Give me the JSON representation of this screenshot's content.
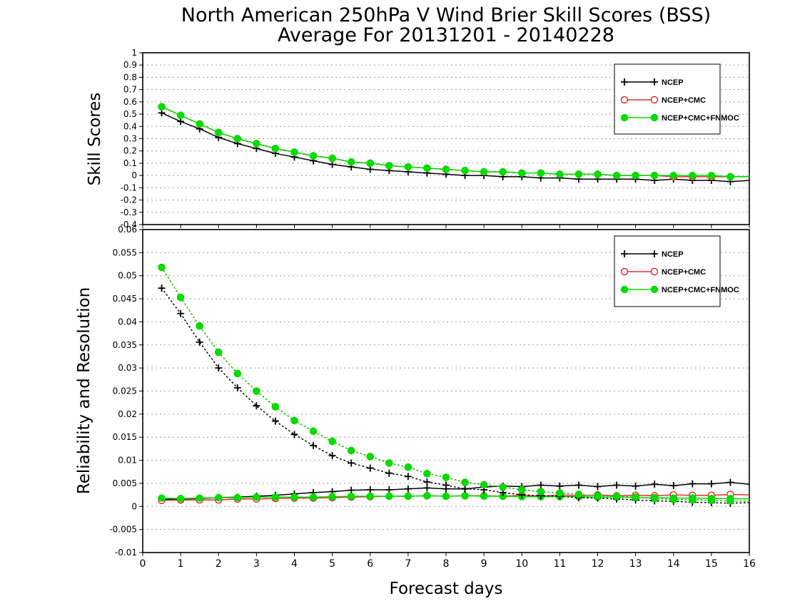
{
  "title": {
    "line1": "North American 250hPa V Wind Brier Skill Scores (BSS)",
    "line2": "Average For 20131201 - 20140228"
  },
  "xlabel": "Forecast days",
  "colors": {
    "ncep": "#000000",
    "ncep_cmc": "#e03030",
    "ncep_cmc_fnmoc": "#00dd00"
  },
  "chart_data": [
    {
      "type": "line",
      "panel": "top",
      "ylabel": "Skill Scores",
      "xlim": [
        0,
        16
      ],
      "ylim": [
        -0.4,
        1
      ],
      "xticks": [
        0,
        1,
        2,
        3,
        4,
        5,
        6,
        7,
        8,
        9,
        10,
        11,
        12,
        13,
        14,
        15,
        16
      ],
      "yticks": [
        "-0.4",
        "-0.3",
        "-0.2",
        "-0.1",
        "0",
        "0.1",
        "0.2",
        "0.3",
        "0.4",
        "0.5",
        "0.6",
        "0.7",
        "0.8",
        "0.9",
        "1"
      ],
      "grid": true,
      "legend_position": "top-right",
      "x": [
        0.5,
        1,
        1.5,
        2,
        2.5,
        3,
        3.5,
        4,
        4.5,
        5,
        5.5,
        6,
        6.5,
        7,
        7.5,
        8,
        8.5,
        9,
        9.5,
        10,
        10.5,
        11,
        11.5,
        12,
        12.5,
        13,
        13.5,
        14,
        14.5,
        15,
        15.5,
        16
      ],
      "series": [
        {
          "name": "NCEP",
          "style": "solid",
          "marker": "plus",
          "color_key": "ncep",
          "values": [
            0.51,
            0.44,
            0.38,
            0.31,
            0.26,
            0.22,
            0.18,
            0.15,
            0.12,
            0.09,
            0.07,
            0.05,
            0.04,
            0.03,
            0.02,
            0.01,
            0.0,
            0.0,
            -0.01,
            -0.01,
            -0.02,
            -0.02,
            -0.03,
            -0.03,
            -0.03,
            -0.03,
            -0.04,
            -0.03,
            -0.04,
            -0.04,
            -0.05,
            -0.04
          ]
        },
        {
          "name": "NCEP+CMC",
          "style": "solid",
          "marker": "open-circle",
          "color_key": "ncep_cmc",
          "values": [
            0.56,
            0.49,
            0.42,
            0.35,
            0.3,
            0.26,
            0.22,
            0.19,
            0.16,
            0.14,
            0.11,
            0.1,
            0.08,
            0.07,
            0.06,
            0.05,
            0.04,
            0.03,
            0.03,
            0.02,
            0.02,
            0.01,
            0.01,
            0.01,
            0.0,
            0.0,
            0.0,
            -0.01,
            -0.01,
            -0.01,
            -0.01,
            -0.01
          ]
        },
        {
          "name": "NCEP+CMC+FNMOC",
          "style": "solid",
          "marker": "filled-circle",
          "color_key": "ncep_cmc_fnmoc",
          "values": [
            0.56,
            0.49,
            0.42,
            0.35,
            0.3,
            0.26,
            0.22,
            0.19,
            0.16,
            0.14,
            0.11,
            0.1,
            0.08,
            0.07,
            0.06,
            0.05,
            0.04,
            0.03,
            0.03,
            0.02,
            0.02,
            0.01,
            0.01,
            0.01,
            0.0,
            0.0,
            0.0,
            0.0,
            0.0,
            0.0,
            -0.01,
            -0.01
          ]
        }
      ]
    },
    {
      "type": "line",
      "panel": "bottom",
      "ylabel": "Reliability and Resolution",
      "xlim": [
        0,
        16
      ],
      "ylim": [
        -0.01,
        0.06
      ],
      "xticks": [
        0,
        1,
        2,
        3,
        4,
        5,
        6,
        7,
        8,
        9,
        10,
        11,
        12,
        13,
        14,
        15,
        16
      ],
      "yticks": [
        "-0.01",
        "-0.005",
        "0",
        "0.005",
        "0.01",
        "0.015",
        "0.02",
        "0.025",
        "0.03",
        "0.035",
        "0.04",
        "0.045",
        "0.05",
        "0.055",
        "0.06"
      ],
      "grid": true,
      "legend_position": "top-right",
      "x": [
        0.5,
        1,
        1.5,
        2,
        2.5,
        3,
        3.5,
        4,
        4.5,
        5,
        5.5,
        6,
        6.5,
        7,
        7.5,
        8,
        8.5,
        9,
        9.5,
        10,
        10.5,
        11,
        11.5,
        12,
        12.5,
        13,
        13.5,
        14,
        14.5,
        15,
        15.5,
        16
      ],
      "series": [
        {
          "name": "NCEP",
          "style": "solid",
          "marker": "plus",
          "color_key": "ncep",
          "legend": true,
          "values": [
            0.0015,
            0.0016,
            0.0017,
            0.0019,
            0.002,
            0.0022,
            0.0024,
            0.0027,
            0.003,
            0.0032,
            0.0035,
            0.0036,
            0.0036,
            0.0038,
            0.004,
            0.0038,
            0.0038,
            0.0042,
            0.0044,
            0.0043,
            0.0046,
            0.0044,
            0.0046,
            0.0043,
            0.0046,
            0.0044,
            0.0048,
            0.0045,
            0.0049,
            0.0049,
            0.0052,
            0.0048
          ]
        },
        {
          "name": "NCEP+CMC",
          "style": "solid",
          "marker": "open-circle",
          "color_key": "ncep_cmc",
          "legend": true,
          "values": [
            0.0013,
            0.0014,
            0.0014,
            0.0014,
            0.0016,
            0.0016,
            0.0017,
            0.0018,
            0.0018,
            0.0019,
            0.002,
            0.0021,
            0.0022,
            0.0022,
            0.0023,
            0.0022,
            0.0023,
            0.0023,
            0.0022,
            0.0024,
            0.0022,
            0.0025,
            0.0023,
            0.0025,
            0.0023,
            0.0024,
            0.0023,
            0.0025,
            0.0024,
            0.0024,
            0.0026,
            0.0025
          ]
        },
        {
          "name": "NCEP+CMC+FNMOC",
          "style": "solid",
          "marker": "filled-circle",
          "color_key": "ncep_cmc_fnmoc",
          "legend": true,
          "values": [
            0.0018,
            0.0017,
            0.0018,
            0.0019,
            0.0019,
            0.002,
            0.002,
            0.002,
            0.002,
            0.0021,
            0.0022,
            0.0022,
            0.0022,
            0.0022,
            0.0023,
            0.0022,
            0.0023,
            0.0022,
            0.0022,
            0.0021,
            0.0021,
            0.0021,
            0.0021,
            0.002,
            0.002,
            0.0019,
            0.0019,
            0.0018,
            0.0018,
            0.0017,
            0.0017,
            0.0016
          ]
        },
        {
          "name": "NCEP",
          "style": "dotted",
          "marker": "plus",
          "color_key": "ncep",
          "legend": false,
          "values": [
            0.0473,
            0.0418,
            0.0356,
            0.03,
            0.0257,
            0.0218,
            0.0185,
            0.0156,
            0.0132,
            0.011,
            0.0094,
            0.0083,
            0.0072,
            0.0065,
            0.0053,
            0.0046,
            0.0038,
            0.0036,
            0.003,
            0.0025,
            0.0023,
            0.0022,
            0.0019,
            0.0018,
            0.0016,
            0.0014,
            0.0012,
            0.0011,
            0.0009,
            0.0008,
            0.0007,
            0.0008
          ]
        },
        {
          "name": "NCEP+CMC",
          "style": "dotted",
          "marker": "open-circle",
          "color_key": "ncep_cmc",
          "legend": false,
          "values": [
            0.0518,
            0.0453,
            0.0391,
            0.0334,
            0.0288,
            0.025,
            0.0216,
            0.0186,
            0.0163,
            0.0141,
            0.0121,
            0.0108,
            0.0094,
            0.0085,
            0.0071,
            0.0063,
            0.0052,
            0.0047,
            0.0042,
            0.0036,
            0.0032,
            0.0029,
            0.0026,
            0.0023,
            0.0022,
            0.002,
            0.0017,
            0.0015,
            0.0014,
            0.0013,
            0.0012,
            0.0011
          ]
        },
        {
          "name": "NCEP+CMC+FNMOC",
          "style": "dotted",
          "marker": "filled-circle",
          "color_key": "ncep_cmc_fnmoc",
          "legend": false,
          "values": [
            0.0518,
            0.0453,
            0.0391,
            0.0334,
            0.0288,
            0.025,
            0.0216,
            0.0186,
            0.0163,
            0.0141,
            0.0121,
            0.0108,
            0.0094,
            0.0085,
            0.0071,
            0.0063,
            0.0052,
            0.0047,
            0.0042,
            0.0036,
            0.0032,
            0.0029,
            0.0026,
            0.0023,
            0.0022,
            0.002,
            0.0017,
            0.0015,
            0.0014,
            0.0013,
            0.0012,
            0.0011
          ]
        }
      ]
    }
  ]
}
